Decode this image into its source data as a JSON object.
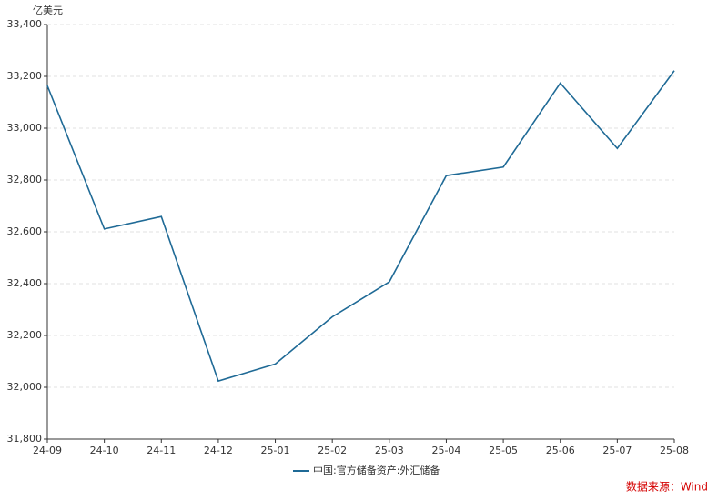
{
  "chart_data": {
    "type": "line",
    "y_label": "亿美元",
    "categories": [
      "24-09",
      "24-10",
      "24-11",
      "24-12",
      "25-01",
      "25-02",
      "25-03",
      "25-04",
      "25-05",
      "25-06",
      "25-07",
      "25-08"
    ],
    "series": [
      {
        "name": "中国:官方储备资产:外汇储备",
        "color": "#1f6a96",
        "values": [
          33164,
          32611,
          32659,
          32024,
          32090,
          32272,
          32407,
          32817,
          32850,
          33174,
          32922,
          33222
        ]
      }
    ],
    "ylim": [
      31800,
      33400
    ],
    "yticks": [
      {
        "value": 31800,
        "label": "31,800"
      },
      {
        "value": 32000,
        "label": "32,000"
      },
      {
        "value": 32200,
        "label": "32,200"
      },
      {
        "value": 32400,
        "label": "32,400"
      },
      {
        "value": 32600,
        "label": "32,600"
      },
      {
        "value": 32800,
        "label": "32,800"
      },
      {
        "value": 33000,
        "label": "33,000"
      },
      {
        "value": 33200,
        "label": "33,200"
      },
      {
        "value": 33400,
        "label": "33,400"
      }
    ],
    "grid": true,
    "legend": "bottom",
    "source": "数据来源：Wind"
  }
}
